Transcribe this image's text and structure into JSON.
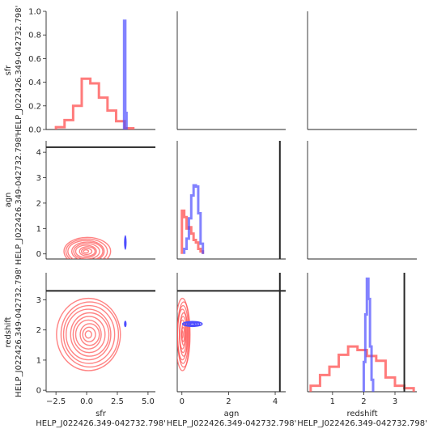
{
  "chart_data": {
    "type": "pairplot",
    "variables": [
      "sfr",
      "agn",
      "redshift"
    ],
    "xlabels": [
      [
        "sfr",
        "HELP_J022426.349-042732.798'"
      ],
      [
        "agn",
        "HELP_J022426.349-042732.798'"
      ],
      [
        "redshift",
        "HELP_J022426.349-042732.798'"
      ]
    ],
    "ylabels": [
      [
        "sfr",
        "HELP_J022426.349-042732.798'"
      ],
      [
        "agn",
        "HELP_J022426.349-042732.798'"
      ],
      [
        "redshift",
        "HELP_J022426.349-042732.798'"
      ]
    ],
    "colors": {
      "prior": "#ff5a5a",
      "posterior": "#4d4dff",
      "truth": "#262626"
    },
    "ranges": {
      "sfr_x": [
        -3.3,
        5.6
      ],
      "agn_x": [
        -0.2,
        4.45
      ],
      "redshift_x": [
        0.2,
        3.7
      ],
      "sfr_diag_y": [
        0,
        1.0
      ],
      "agn_y": [
        -0.2,
        4.45
      ],
      "redshift_y": [
        -0.05,
        3.9
      ]
    },
    "xticks": {
      "sfr": [
        -2.5,
        0.0,
        2.5,
        5.0
      ],
      "agn": [
        0,
        2,
        4
      ],
      "redshift": [
        1,
        2,
        3
      ]
    },
    "xtick_labels": {
      "sfr": [
        "−2.5",
        "0.0",
        "2.5",
        "5.0"
      ],
      "agn": [
        "0",
        "2",
        "4"
      ],
      "redshift": [
        "1",
        "2",
        "3"
      ]
    },
    "yticks": {
      "sfr": [
        0.0,
        0.2,
        0.4,
        0.6,
        0.8,
        1.0
      ],
      "agn": [
        0,
        1,
        2,
        3,
        4
      ],
      "redshift": [
        0,
        1,
        2,
        3
      ]
    },
    "ytick_labels": {
      "sfr": [
        "0.0",
        "0.2",
        "0.4",
        "0.6",
        "0.8",
        "1.0"
      ],
      "agn": [
        "0",
        "1",
        "2",
        "3",
        "4"
      ],
      "redshift": [
        "0",
        "1",
        "2",
        "3"
      ]
    },
    "truth": {
      "sfr": null,
      "agn": 4.2,
      "redshift": 3.3
    },
    "posterior_point": {
      "sfr": 3.15,
      "agn": 0.45,
      "redshift": 2.2
    },
    "hist_sfr_prior": {
      "edges": [
        -2.5,
        -1.8,
        -1.1,
        -0.4,
        0.3,
        1.0,
        1.7,
        2.4,
        3.1,
        3.8
      ],
      "heights": [
        0.02,
        0.08,
        0.2,
        0.43,
        0.39,
        0.27,
        0.16,
        0.07,
        0.01
      ]
    },
    "hist_sfr_post": {
      "edges": [
        3.05,
        3.15,
        3.25
      ],
      "heights": [
        0.92,
        0.14
      ]
    },
    "hist_agn_prior": {
      "edges": [
        0.0,
        0.1,
        0.2,
        0.3,
        0.4,
        0.5,
        0.6,
        0.7,
        0.8,
        0.9
      ],
      "heights": [
        1.7,
        1.45,
        1.0,
        1.05,
        0.8,
        0.55,
        0.45,
        0.2,
        0.1
      ]
    },
    "hist_agn_post": {
      "edges": [
        0.1,
        0.2,
        0.3,
        0.4,
        0.5,
        0.6,
        0.7,
        0.8,
        0.9
      ],
      "heights": [
        0.2,
        0.6,
        1.4,
        2.3,
        2.7,
        2.65,
        1.6,
        0.4
      ]
    },
    "hist_z_prior": {
      "edges": [
        0.3,
        0.6,
        0.9,
        1.2,
        1.5,
        1.8,
        2.1,
        2.4,
        2.7,
        3.0,
        3.3,
        3.6
      ],
      "heights": [
        0.05,
        0.14,
        0.21,
        0.31,
        0.38,
        0.35,
        0.3,
        0.26,
        0.12,
        0.05,
        0.03
      ]
    },
    "hist_z_post": {
      "edges": [
        2.0,
        2.05,
        2.1,
        2.15,
        2.2,
        2.25,
        2.3
      ],
      "heights": [
        0.25,
        0.65,
        0.95,
        0.78,
        0.38,
        0.1
      ]
    },
    "kde_sfr_agn": {
      "center": [
        0.0,
        0.1
      ],
      "spread": [
        1.9,
        0.55
      ],
      "levels": 9
    },
    "kde_sfr_z": {
      "center": [
        0.2,
        1.85
      ],
      "spread": [
        2.6,
        1.2
      ],
      "levels": 10
    },
    "kde_agn_z": {
      "center": [
        0.05,
        1.85
      ],
      "spread": [
        0.3,
        1.2
      ],
      "levels": 10
    }
  }
}
